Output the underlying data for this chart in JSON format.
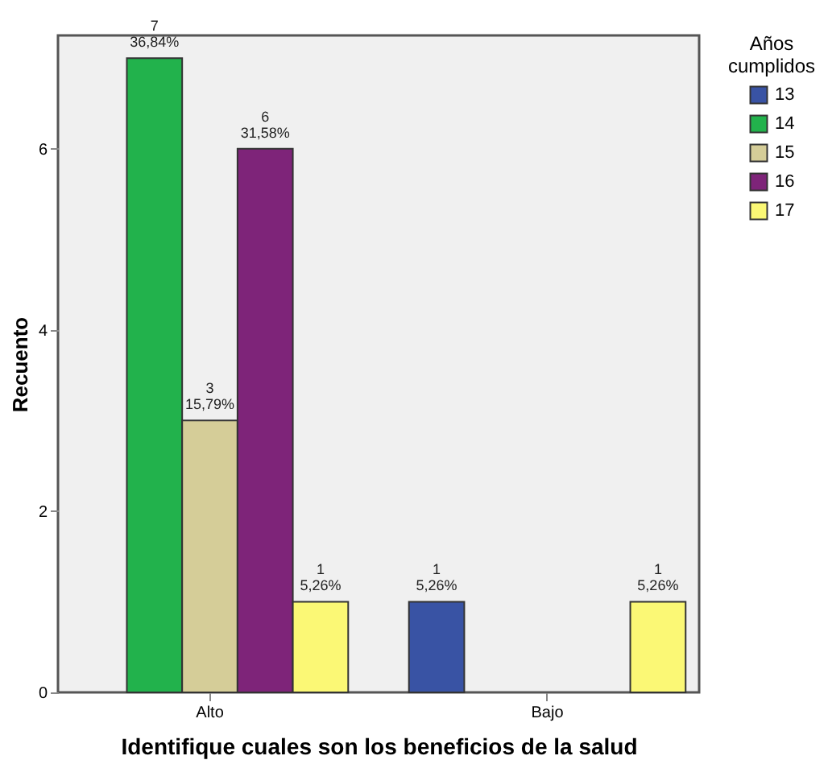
{
  "chart_data": {
    "type": "bar",
    "xlabel": "Identifique cuales son los beneficios de la salud",
    "ylabel": "Recuento",
    "legend_title": "Años cumplidos",
    "legend": "top right",
    "categories": [
      "Alto",
      "Bajo"
    ],
    "series": [
      {
        "name": "13",
        "color": "#3953a4",
        "values": [
          null,
          1
        ],
        "value_labels": [
          null,
          "1\n5,26%"
        ]
      },
      {
        "name": "14",
        "color": "#22b24c",
        "values": [
          7,
          null
        ],
        "value_labels": [
          "7\n36,84%",
          null
        ]
      },
      {
        "name": "15",
        "color": "#d5cd98",
        "values": [
          3,
          null
        ],
        "value_labels": [
          "3\n15,79%",
          null
        ]
      },
      {
        "name": "16",
        "color": "#7e2479",
        "values": [
          6,
          null
        ],
        "value_labels": [
          "6\n31,58%",
          null
        ]
      },
      {
        "name": "17",
        "color": "#fbf875",
        "values": [
          1,
          1
        ],
        "value_labels": [
          "1\n5,26%",
          "1\n5,26%"
        ]
      }
    ],
    "ylim": [
      0,
      7.25
    ],
    "yticks": [
      0,
      2,
      4,
      6
    ],
    "grid": false
  }
}
